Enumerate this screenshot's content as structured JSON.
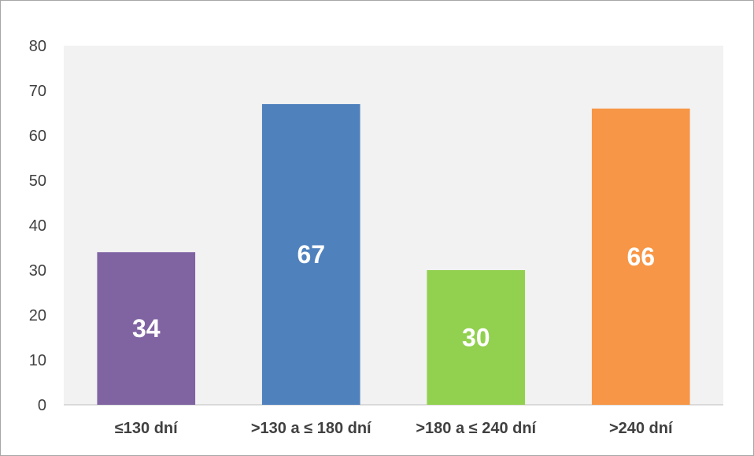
{
  "chart_data": {
    "type": "bar",
    "categories": [
      "≤130 dní",
      ">130 a ≤ 180 dní",
      ">180 a ≤ 240 dní",
      ">240 dní"
    ],
    "values": [
      34,
      67,
      30,
      66
    ],
    "colors": [
      "#8064a2",
      "#4f81bd",
      "#92d050",
      "#f79646"
    ],
    "data_labels": [
      "34",
      "67",
      "30",
      "66"
    ],
    "ylim": [
      0,
      80
    ],
    "yticks": [
      0,
      10,
      20,
      30,
      40,
      50,
      60,
      70,
      80
    ],
    "plot_background": "#f2f2f2",
    "grid": false,
    "legend": "none",
    "title": "",
    "xlabel": "",
    "ylabel": ""
  }
}
